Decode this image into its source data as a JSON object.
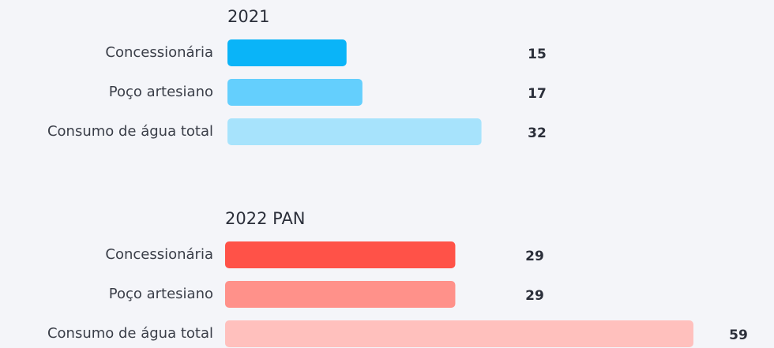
{
  "chart_data": [
    {
      "type": "bar",
      "orientation": "horizontal",
      "title": "2021",
      "categories": [
        "Concessionária",
        "Poço artesiano",
        "Consumo de água total"
      ],
      "values": [
        15,
        17,
        32
      ],
      "colors": [
        "#0ab4f8",
        "#64cffd",
        "#a7e3fc"
      ]
    },
    {
      "type": "bar",
      "orientation": "horizontal",
      "title": "2022 PAN",
      "categories": [
        "Concessionária",
        "Poço artesiano",
        "Consumo de água total"
      ],
      "values": [
        29,
        29,
        59
      ],
      "colors": [
        "#ff5248",
        "#ff918a",
        "#ffc0bd"
      ]
    }
  ]
}
